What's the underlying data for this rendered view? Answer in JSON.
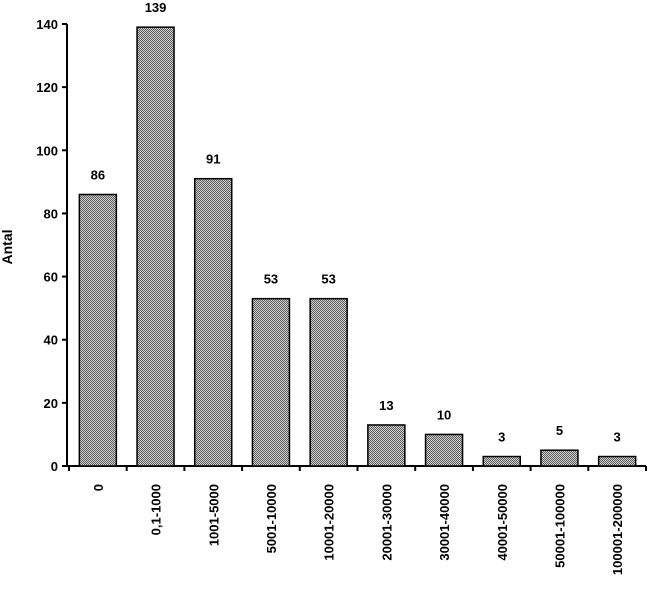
{
  "chart_data": {
    "type": "bar",
    "title": "",
    "xlabel": "",
    "ylabel": "Antal",
    "categories": [
      "0",
      "0,1-1000",
      "1001-5000",
      "5001-10000",
      "10001-20000",
      "20001-30000",
      "30001-40000",
      "40001-50000",
      "50001-100000",
      "100001-200000"
    ],
    "values": [
      86,
      139,
      91,
      53,
      53,
      13,
      10,
      3,
      5,
      3
    ],
    "data_labels": [
      "86",
      "139",
      "91",
      "53",
      "53",
      "13",
      "10",
      "3",
      "5",
      "3"
    ],
    "ylim": [
      0,
      140
    ],
    "yticks": [
      0,
      20,
      40,
      60,
      80,
      100,
      120,
      140
    ],
    "grid": false,
    "bar_fill": "#9a9a9a"
  }
}
